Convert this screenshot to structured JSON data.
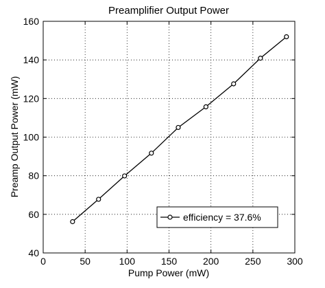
{
  "chart_data": {
    "type": "line",
    "title": "Preamplifier Output Power",
    "xlabel": "Pump Power (mW)",
    "ylabel": "Preamp Output Power (mW)",
    "xlim": [
      0,
      300
    ],
    "ylim": [
      40,
      160
    ],
    "xticks": [
      0,
      50,
      100,
      150,
      200,
      250,
      300
    ],
    "yticks": [
      40,
      60,
      80,
      100,
      120,
      140,
      160
    ],
    "grid": true,
    "grid_style": "dotted",
    "legend_position": "bottom-right",
    "series": [
      {
        "name": "efficiency = 37.6%",
        "marker": "circle",
        "color": "#000000",
        "x": [
          35,
          66,
          97,
          129,
          161,
          194,
          227,
          259,
          290
        ],
        "y": [
          56.2,
          67.8,
          79.9,
          91.7,
          105.0,
          115.7,
          127.6,
          140.9,
          152.0
        ]
      }
    ]
  }
}
